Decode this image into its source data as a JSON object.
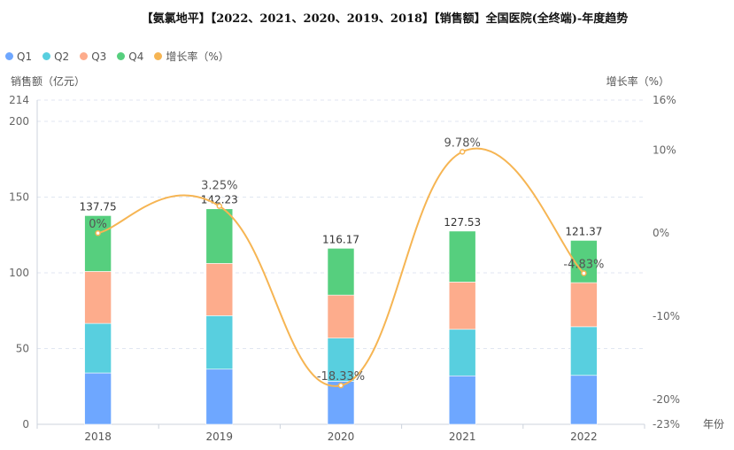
{
  "title": "【氨氯地平】【2022、2021、2020、2019、2018】【销售额】全国医院(全终端)-年度趋势",
  "chart_data": {
    "type": "bar",
    "categories": [
      "2018",
      "2019",
      "2020",
      "2021",
      "2022"
    ],
    "series": [
      {
        "name": "Q1",
        "color": "#6ea7ff",
        "values": [
          33.9,
          36.4,
          28.4,
          32.0,
          32.3
        ]
      },
      {
        "name": "Q2",
        "color": "#58cfdf",
        "values": [
          32.7,
          35.3,
          28.5,
          30.7,
          32.1
        ]
      },
      {
        "name": "Q3",
        "color": "#fdac8c",
        "values": [
          34.3,
          34.5,
          28.4,
          31.2,
          29.1
        ]
      },
      {
        "name": "Q4",
        "color": "#56cf7e",
        "values": [
          36.85,
          36.03,
          30.87,
          33.63,
          27.87
        ]
      }
    ],
    "totals": [
      "137.75",
      "142.23",
      "116.17",
      "127.53",
      "121.37"
    ],
    "line": {
      "name": "增长率（%）",
      "color": "#f6b553",
      "values": [
        0,
        3.25,
        -18.33,
        9.78,
        -4.83
      ],
      "labels": [
        "0%",
        "3.25%",
        "-18.33%",
        "9.78%",
        "-4.83%"
      ]
    },
    "ylabel": "销售额（亿元）",
    "y2label": "增长率（%）",
    "xlabel": "年份",
    "ylim": [
      0,
      214
    ],
    "y_ticks": [
      "0",
      "50",
      "100",
      "150",
      "200",
      "214"
    ],
    "y2lim": [
      -23,
      16
    ],
    "y2_ticks": [
      "-23%",
      "-20%",
      "-10%",
      "0%",
      "10%",
      "16%"
    ],
    "grid": true,
    "legend_position": "top-left"
  }
}
